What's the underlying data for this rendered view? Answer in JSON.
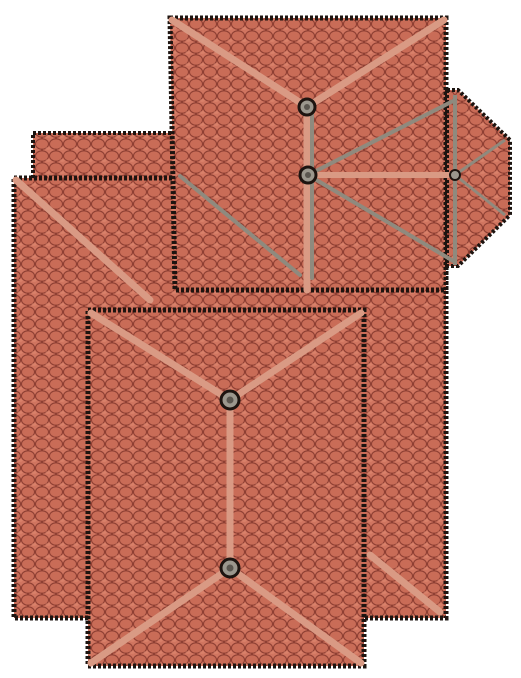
{
  "map": {
    "asset": "roof-tiles-top-down",
    "colors": {
      "tile_fill": "#c66a55",
      "tile_dark": "#8e3f33",
      "tile_light": "#e08a73",
      "outline": "#1d1410",
      "ridge_wood": "#d99a84",
      "ridge_metal": "#8f8a7e",
      "cap": "#9b978d",
      "background": "#ffffff"
    },
    "icons": [
      "roof-finial-cap",
      "roof-finial-cap",
      "roof-finial-cap",
      "roof-finial-cap"
    ]
  }
}
